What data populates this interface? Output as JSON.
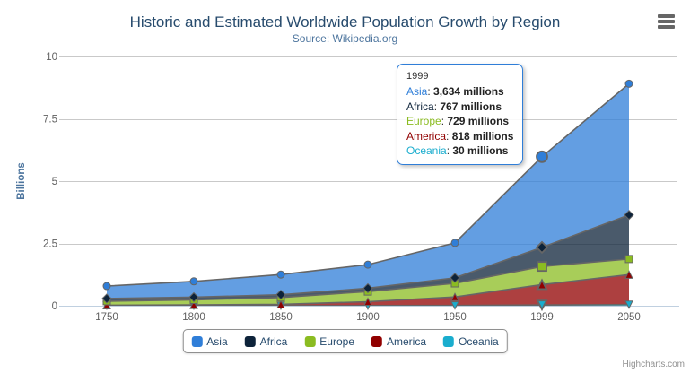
{
  "chart_data": {
    "type": "area",
    "stacking": "normal",
    "title": "Historic and Estimated Worldwide Population Growth by Region",
    "subtitle": "Source: Wikipedia.org",
    "xlabel": "",
    "ylabel": "Billions",
    "categories": [
      "1750",
      "1800",
      "1850",
      "1900",
      "1950",
      "1999",
      "2050"
    ],
    "yticks": [
      0,
      2.5,
      5,
      7.5,
      10
    ],
    "ylim": [
      0,
      10
    ],
    "values_unit": "millions",
    "grid": "horizontal",
    "legend_position": "bottom",
    "hover_index": 5,
    "line_color": "#666666",
    "fill_opacity": 0.75,
    "grid_color": "#c9c9c9",
    "axis_line_color": "#c0d0e0",
    "series": [
      {
        "name": "Asia",
        "color": "#2f7ed8",
        "marker": "circle",
        "values": [
          502,
          635,
          809,
          947,
          1402,
          3634,
          5268
        ]
      },
      {
        "name": "Africa",
        "color": "#0d233a",
        "marker": "diamond",
        "values": [
          106,
          107,
          111,
          133,
          221,
          767,
          1766
        ]
      },
      {
        "name": "Europe",
        "color": "#8bbc21",
        "marker": "square",
        "values": [
          163,
          203,
          276,
          408,
          547,
          729,
          628
        ]
      },
      {
        "name": "America",
        "color": "#910000",
        "marker": "triangle",
        "values": [
          18,
          31,
          54,
          156,
          339,
          818,
          1201
        ]
      },
      {
        "name": "Oceania",
        "color": "#1aadce",
        "marker": "triangle-down",
        "values": [
          2,
          2,
          2,
          6,
          13,
          30,
          46
        ]
      }
    ]
  },
  "tooltip": {
    "header": "1999",
    "rows": [
      {
        "name": "Asia",
        "value": "3,634 millions"
      },
      {
        "name": "Africa",
        "value": "767 millions"
      },
      {
        "name": "Europe",
        "value": "729 millions"
      },
      {
        "name": "America",
        "value": "818 millions"
      },
      {
        "name": "Oceania",
        "value": "30 millions"
      }
    ]
  },
  "credits": "Highcharts.com"
}
